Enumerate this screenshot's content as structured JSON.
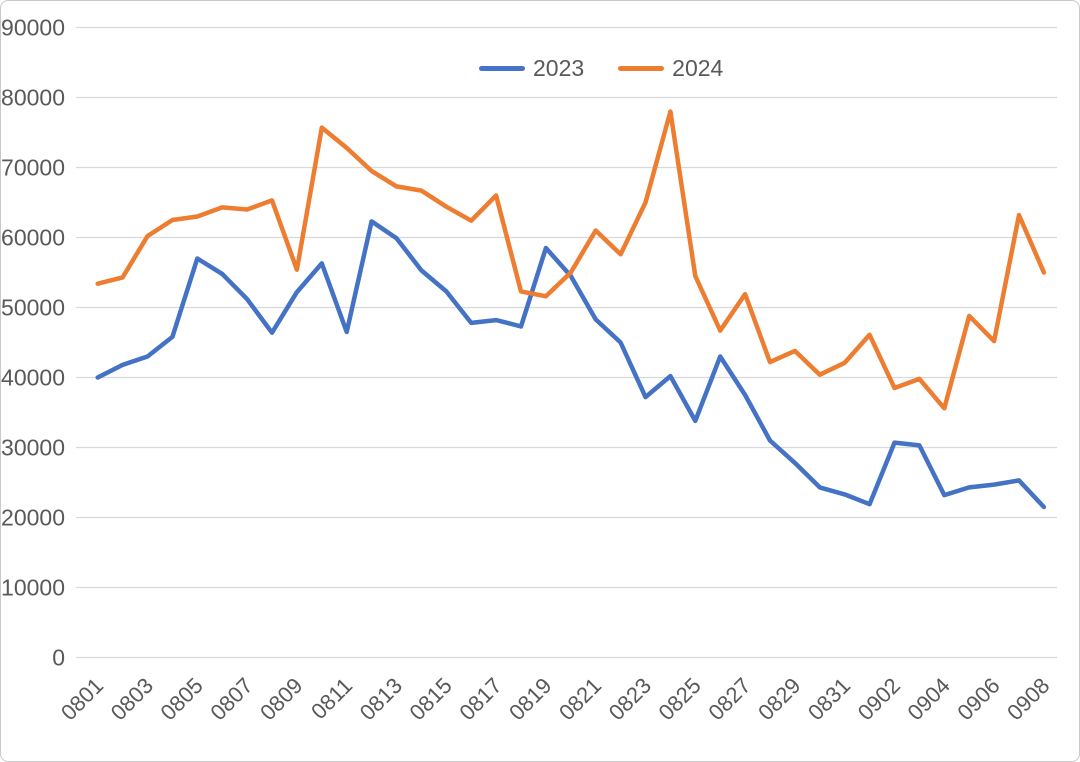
{
  "chart_data": {
    "type": "line",
    "title": "",
    "xlabel": "",
    "ylabel": "",
    "grid": true,
    "legend_position": "top-center",
    "ylim": [
      0,
      90000
    ],
    "y_ticks": [
      0,
      10000,
      20000,
      30000,
      40000,
      50000,
      60000,
      70000,
      80000,
      90000
    ],
    "categories": [
      "0801",
      "0802",
      "0803",
      "0804",
      "0805",
      "0806",
      "0807",
      "0808",
      "0809",
      "0810",
      "0811",
      "0812",
      "0813",
      "0814",
      "0815",
      "0816",
      "0817",
      "0818",
      "0819",
      "0820",
      "0821",
      "0822",
      "0823",
      "0824",
      "0825",
      "0826",
      "0827",
      "0828",
      "0829",
      "0830",
      "0831",
      "0901",
      "0902",
      "0903",
      "0904",
      "0905",
      "0906",
      "0907",
      "0908"
    ],
    "x_tick_labels_shown": [
      "0801",
      "0803",
      "0805",
      "0807",
      "0809",
      "0811",
      "0813",
      "0815",
      "0817",
      "0819",
      "0821",
      "0823",
      "0825",
      "0827",
      "0829",
      "0831",
      "0902",
      "0904",
      "0906",
      "0908"
    ],
    "series": [
      {
        "name": "2023",
        "color": "#4472C4",
        "values": [
          40000,
          41800,
          43000,
          45800,
          57000,
          54800,
          51200,
          46400,
          52200,
          56300,
          46500,
          62300,
          59900,
          55300,
          52300,
          47800,
          48200,
          47300,
          58500,
          54500,
          48300,
          45000,
          37200,
          40200,
          33800,
          43000,
          37500,
          31000,
          27800,
          24300,
          23300,
          21900,
          30700,
          30300,
          23200,
          24300,
          24700,
          25300,
          21500
        ]
      },
      {
        "name": "2024",
        "color": "#ED7D31",
        "values": [
          53400,
          54300,
          60200,
          62500,
          63000,
          64300,
          64000,
          65300,
          55400,
          75700,
          72800,
          69500,
          67300,
          66700,
          64400,
          62400,
          66000,
          52300,
          51600,
          55000,
          61000,
          57600,
          65000,
          78000,
          54500,
          46700,
          51900,
          42200,
          43800,
          40400,
          42100,
          46100,
          38500,
          39800,
          35600,
          48800,
          45200,
          63200,
          55000
        ]
      }
    ]
  },
  "style": {
    "grid_color": "#d9d9d9",
    "axis_text_color": "#595959",
    "background": "#ffffff"
  }
}
